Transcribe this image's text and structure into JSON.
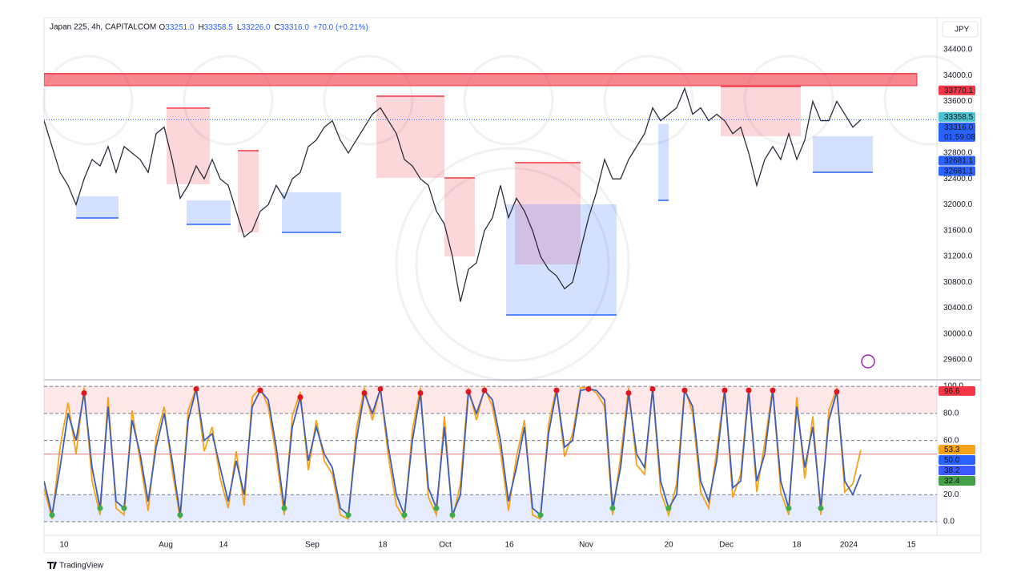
{
  "currency": "JPY",
  "brand": "TradingView",
  "chart_data": [
    {
      "type": "line",
      "title": "Japan 225, 4h, CAPITALCOM",
      "legend_values": [
        {
          "key": "O",
          "value": "33251.0"
        },
        {
          "key": "H",
          "value": "33358.5"
        },
        {
          "key": "L",
          "value": "33226.0"
        },
        {
          "key": "C",
          "value": "33316.0"
        }
      ],
      "change": "+70.0 (+0.21%)",
      "x": [
        0,
        1,
        2,
        3,
        4,
        5,
        6,
        7,
        8,
        9,
        10,
        11,
        12,
        13,
        14,
        15,
        16,
        17,
        18,
        19,
        20,
        21,
        22,
        23,
        24,
        25,
        26,
        27,
        28,
        29,
        30,
        31,
        32,
        33,
        34,
        35,
        36,
        37,
        38,
        39,
        40,
        41,
        42,
        43,
        44,
        45,
        46,
        47,
        48,
        49,
        50,
        51,
        52,
        53,
        54,
        55,
        56,
        57,
        58,
        59,
        60,
        61,
        62,
        63,
        64,
        65,
        66,
        67,
        68,
        69,
        70,
        71,
        72,
        73,
        74,
        75,
        76,
        77,
        78,
        79,
        80,
        81,
        82,
        83,
        84,
        85,
        86,
        87,
        88,
        89,
        90,
        91,
        92,
        93,
        94,
        95,
        96,
        97,
        98,
        99,
        100,
        101,
        102
      ],
      "series": [
        {
          "color": "#2a2e39",
          "values": [
            33300,
            32900,
            32500,
            32300,
            32000,
            32400,
            32700,
            32600,
            32900,
            32500,
            32900,
            32800,
            32700,
            32500,
            33100,
            33200,
            32700,
            32100,
            32300,
            32600,
            32400,
            32700,
            32400,
            32300,
            31900,
            31500,
            31600,
            31900,
            32000,
            32300,
            32100,
            32400,
            32500,
            32900,
            33000,
            33200,
            33300,
            33000,
            32800,
            33000,
            33200,
            33400,
            33500,
            33300,
            33100,
            32700,
            32600,
            32400,
            32300,
            31900,
            31700,
            31200,
            30500,
            31000,
            31100,
            31600,
            31800,
            32300,
            31800,
            32100,
            31900,
            31600,
            31200,
            31000,
            30900,
            30700,
            30800,
            31300,
            31800,
            32200,
            32700,
            32400,
            32400,
            32700,
            32900,
            33100,
            33500,
            33300,
            33400,
            33500,
            33800,
            33400,
            33500,
            33300,
            33400,
            33300,
            33100,
            33200,
            32800,
            32300,
            32700,
            32900,
            32700,
            33100,
            32700,
            33000,
            33600,
            33300,
            33300,
            33600,
            33400,
            33200,
            33316
          ]
        }
      ],
      "xlim": [
        0,
        111.5
      ],
      "ylim": [
        29315,
        34895
      ],
      "yticks": [
        {
          "value": 29600,
          "label": "29600.0"
        },
        {
          "value": 30000,
          "label": "30000.0"
        },
        {
          "value": 30400,
          "label": "30400.0"
        },
        {
          "value": 30800,
          "label": "30800.0"
        },
        {
          "value": 31200,
          "label": "31200.0"
        },
        {
          "value": 31600,
          "label": "31600.0"
        },
        {
          "value": 32000,
          "label": "32000.0"
        },
        {
          "value": 32400,
          "label": "32400.0"
        },
        {
          "value": 32800,
          "label": "32800.0"
        },
        {
          "value": 33600,
          "label": "33600.0"
        },
        {
          "value": 34000,
          "label": "34000.0"
        },
        {
          "value": 34400,
          "label": "34400.0"
        }
      ],
      "zones": [
        {
          "x": [
            0,
            109
          ],
          "y": [
            33842,
            34028
          ],
          "color": "#f23645"
        },
        {
          "x": [
            15.3,
            20.7
          ],
          "y": [
            32316,
            33495
          ],
          "color": "#f23645"
        },
        {
          "x": [
            24.2,
            26.8
          ],
          "y": [
            31572,
            32837
          ],
          "color": "#f23645"
        },
        {
          "x": [
            41.5,
            50
          ],
          "y": [
            32415,
            33680
          ],
          "color": "#f23645"
        },
        {
          "x": [
            50,
            53.8
          ],
          "y": [
            31200,
            32415
          ],
          "color": "#f23645"
        },
        {
          "x": [
            58.8,
            67
          ],
          "y": [
            31076,
            32650
          ],
          "color": "#f23645"
        },
        {
          "x": [
            84.5,
            94.5
          ],
          "y": [
            33060,
            33830
          ],
          "color": "#f23645"
        },
        {
          "x": [
            4,
            9.3
          ],
          "y": [
            31795,
            32130
          ],
          "color": "#2962ff"
        },
        {
          "x": [
            17.8,
            23.3
          ],
          "y": [
            31696,
            32068
          ],
          "color": "#2962ff"
        },
        {
          "x": [
            29.7,
            37.1
          ],
          "y": [
            31572,
            32192
          ],
          "color": "#2962ff"
        },
        {
          "x": [
            57.7,
            71.5
          ],
          "y": [
            30295,
            32006
          ],
          "color": "#2962ff"
        },
        {
          "x": [
            76.7,
            78
          ],
          "y": [
            32068,
            33250
          ],
          "color": "#2962ff"
        },
        {
          "x": [
            96,
            103.5
          ],
          "y": [
            32502,
            33060
          ],
          "color": "#2962ff"
        }
      ],
      "price_tags": [
        {
          "value": 33770.1,
          "label": "33770.1",
          "color": "#f23645"
        },
        {
          "value": 33358.5,
          "label": "33358.5",
          "color": "#4dc3d1"
        },
        {
          "value": 33316.0,
          "label": "33316.0",
          "sub": "01:59:08",
          "color": "#2962ff"
        },
        {
          "value": 32681.1,
          "label": "32681.1",
          "color": "#2962ff"
        },
        {
          "value": 32681.1,
          "label": "32681.1",
          "color": "#2962ff"
        }
      ]
    },
    {
      "type": "line",
      "x": [
        0,
        1,
        2,
        3,
        4,
        5,
        6,
        7,
        8,
        9,
        10,
        11,
        12,
        13,
        14,
        15,
        16,
        17,
        18,
        19,
        20,
        21,
        22,
        23,
        24,
        25,
        26,
        27,
        28,
        29,
        30,
        31,
        32,
        33,
        34,
        35,
        36,
        37,
        38,
        39,
        40,
        41,
        42,
        43,
        44,
        45,
        46,
        47,
        48,
        49,
        50,
        51,
        52,
        53,
        54,
        55,
        56,
        57,
        58,
        59,
        60,
        61,
        62,
        63,
        64,
        65,
        66,
        67,
        68,
        69,
        70,
        71,
        72,
        73,
        74,
        75,
        76,
        77,
        78,
        79,
        80,
        81,
        82,
        83,
        84,
        85,
        86,
        87,
        88,
        89,
        90,
        91,
        92,
        93,
        94,
        95,
        96,
        97,
        98,
        99,
        100,
        101,
        102
      ],
      "series": [
        {
          "color": "#f7a21b",
          "values": [
            25,
            2,
            55,
            88,
            50,
            99,
            30,
            5,
            92,
            10,
            5,
            82,
            45,
            8,
            62,
            85,
            38,
            2,
            82,
            99,
            52,
            70,
            32,
            10,
            52,
            12,
            92,
            99,
            85,
            48,
            5,
            78,
            96,
            38,
            75,
            45,
            35,
            5,
            2,
            68,
            99,
            75,
            99,
            48,
            12,
            2,
            68,
            99,
            18,
            5,
            78,
            2,
            28,
            99,
            75,
            99,
            85,
            52,
            8,
            48,
            75,
            5,
            2,
            72,
            99,
            48,
            65,
            99,
            99,
            95,
            85,
            5,
            48,
            99,
            42,
            35,
            99,
            22,
            5,
            28,
            99,
            80,
            22,
            10,
            52,
            99,
            18,
            35,
            99,
            22,
            58,
            99,
            22,
            5,
            92,
            32,
            78,
            5,
            82,
            99,
            22,
            28,
            53
          ]
        },
        {
          "color": "#3f5fb5",
          "values": [
            30,
            5,
            40,
            80,
            60,
            95,
            40,
            10,
            85,
            15,
            10,
            75,
            50,
            15,
            55,
            80,
            45,
            5,
            75,
            98,
            60,
            65,
            40,
            15,
            45,
            20,
            85,
            97,
            90,
            55,
            10,
            70,
            92,
            45,
            70,
            50,
            40,
            10,
            5,
            60,
            95,
            80,
            98,
            55,
            20,
            5,
            60,
            95,
            25,
            10,
            70,
            5,
            20,
            96,
            80,
            97,
            90,
            60,
            15,
            40,
            70,
            10,
            5,
            65,
            97,
            55,
            60,
            97,
            98,
            97,
            90,
            10,
            40,
            95,
            50,
            40,
            98,
            30,
            10,
            20,
            97,
            85,
            30,
            15,
            45,
            97,
            25,
            30,
            97,
            30,
            50,
            97,
            30,
            10,
            85,
            40,
            70,
            10,
            75,
            96,
            30,
            20,
            35
          ]
        }
      ],
      "xlim": [
        0,
        111.5
      ],
      "ylim": [
        -5.3,
        103.6
      ],
      "xticks": [
        {
          "value": 2.5,
          "label": "10"
        },
        {
          "value": 15.2,
          "label": "Aug"
        },
        {
          "value": 22.4,
          "label": "14"
        },
        {
          "value": 33.5,
          "label": "Sep"
        },
        {
          "value": 42.3,
          "label": "18"
        },
        {
          "value": 50.1,
          "label": "Oct"
        },
        {
          "value": 58.1,
          "label": "16"
        },
        {
          "value": 67.7,
          "label": "Nov"
        },
        {
          "value": 78,
          "label": "20"
        },
        {
          "value": 85.2,
          "label": "Dec"
        },
        {
          "value": 94,
          "label": "18"
        },
        {
          "value": 100.5,
          "label": "2024"
        },
        {
          "value": 108.3,
          "label": "15"
        }
      ],
      "yticks": [
        {
          "value": 0,
          "label": "0.0"
        },
        {
          "value": 20,
          "label": "20.0"
        },
        {
          "value": 60,
          "label": "60.0"
        },
        {
          "value": 80,
          "label": "80.0"
        },
        {
          "value": 100,
          "label": "100.0"
        }
      ],
      "bands": [
        {
          "range": [
            80,
            100
          ],
          "color": "#f23645"
        },
        {
          "range": [
            0,
            20
          ],
          "color": "#2962ff"
        }
      ],
      "tags": [
        {
          "value": 96.6,
          "label": "96.6",
          "color": "#f23645"
        },
        {
          "value": 53.3,
          "label": "53.3",
          "color": "#f7a21b"
        },
        {
          "value": 50,
          "label": "50.0",
          "color": "#2962ff"
        },
        {
          "value": 38.2,
          "label": "38.2",
          "color": "#3d5afe"
        },
        {
          "value": 32.4,
          "label": "32.4",
          "color": "#43a047"
        }
      ]
    }
  ]
}
